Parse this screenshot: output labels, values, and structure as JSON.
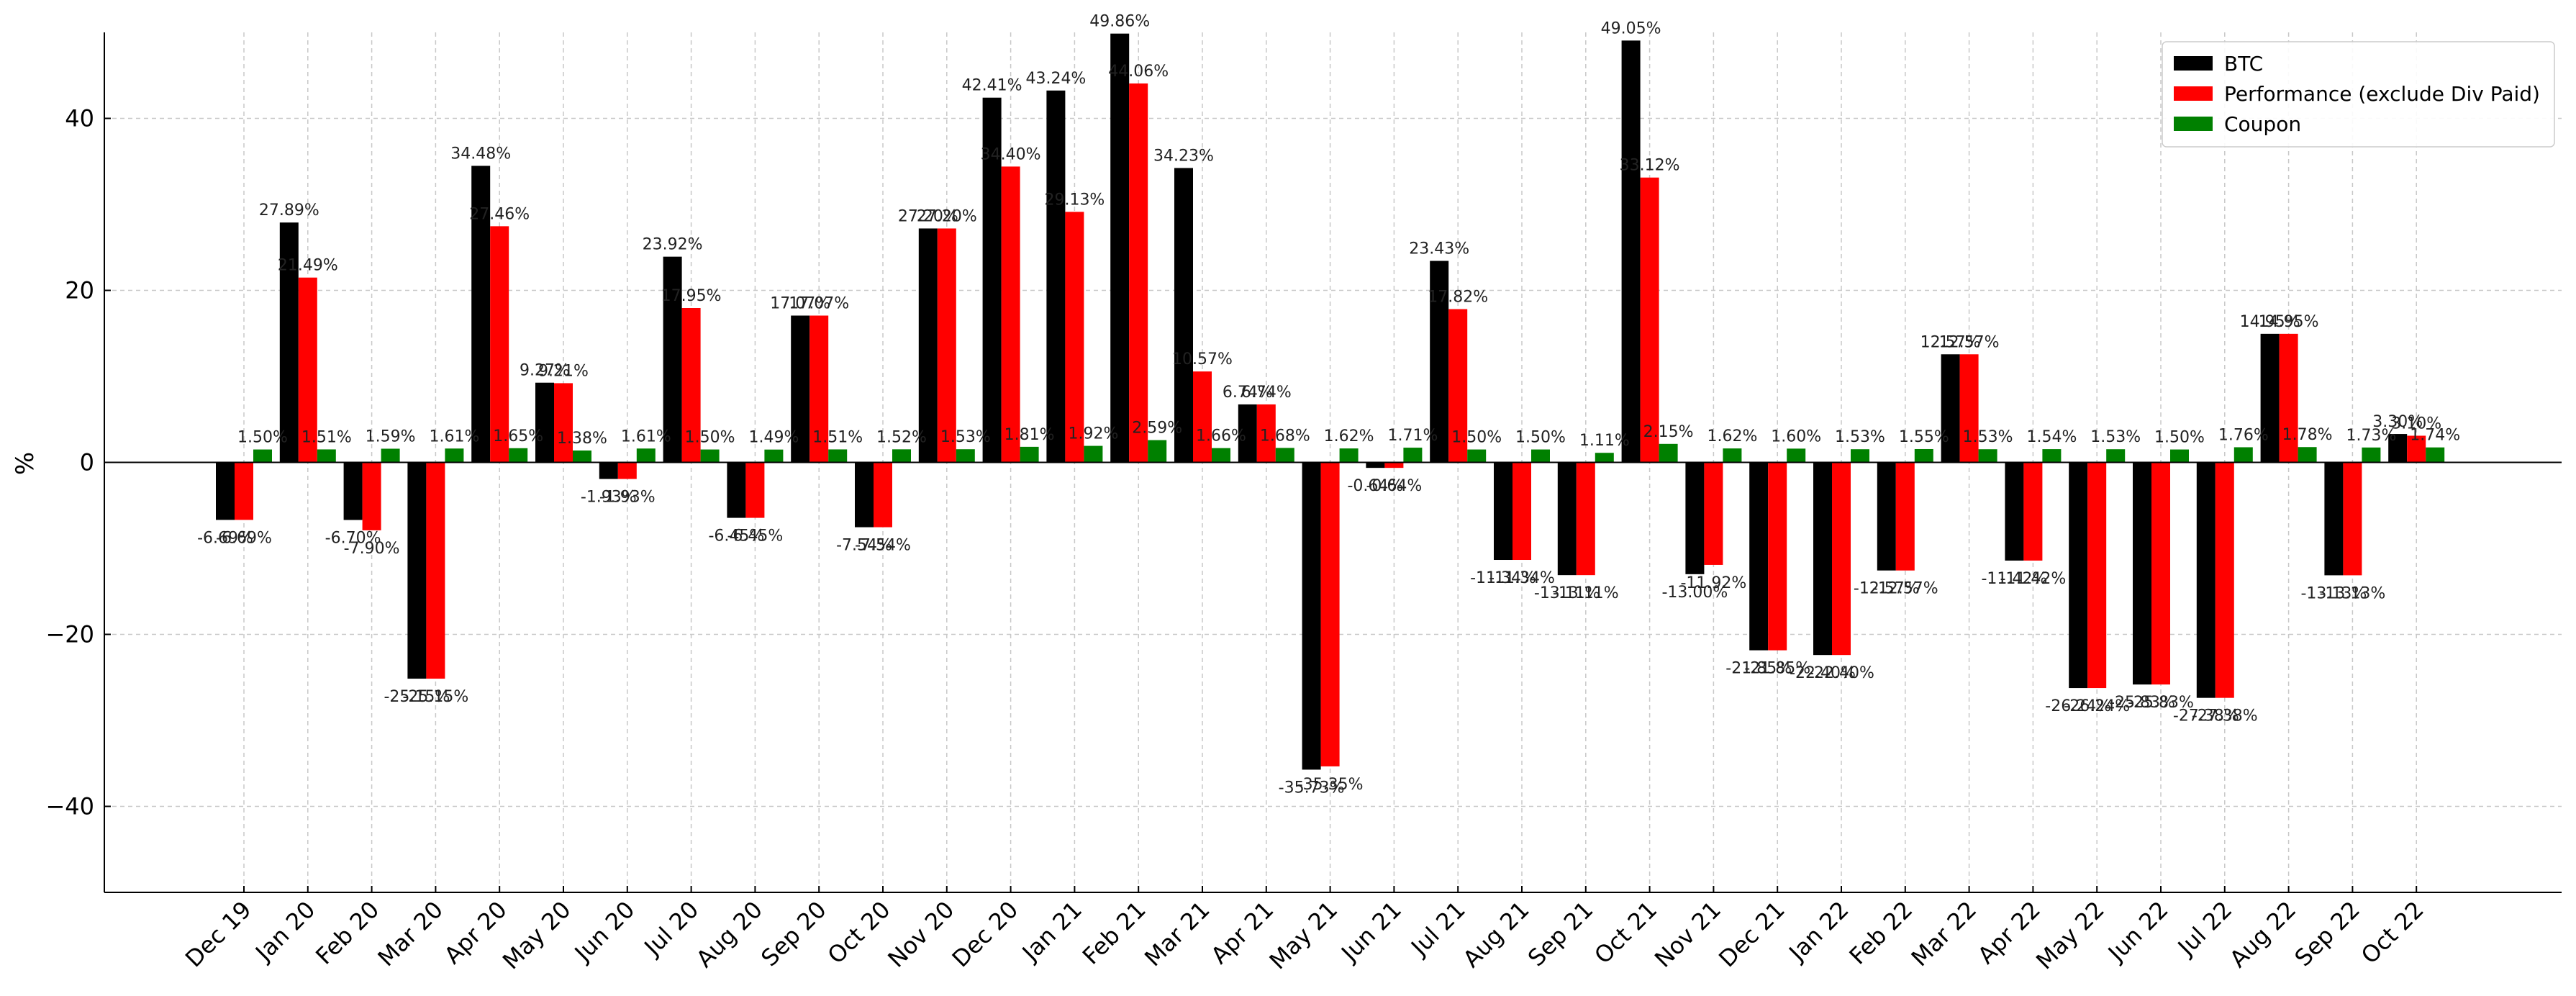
{
  "chart_data": {
    "type": "bar",
    "title": "",
    "xlabel": "",
    "ylabel": "%",
    "ylim": [
      -50,
      50
    ],
    "yticks": [
      -40,
      -20,
      0,
      20,
      40
    ],
    "grid": true,
    "legend_position": "top-right",
    "categories": [
      "Dec 19",
      "Jan 20",
      "Feb 20",
      "Mar 20",
      "Apr 20",
      "May 20",
      "Jun 20",
      "Jul 20",
      "Aug 20",
      "Sep 20",
      "Oct 20",
      "Nov 20",
      "Dec 20",
      "Jan 21",
      "Feb 21",
      "Mar 21",
      "Apr 21",
      "May 21",
      "Jun 21",
      "Jul 21",
      "Aug 21",
      "Sep 21",
      "Oct 21",
      "Nov 21",
      "Dec 21",
      "Jan 22",
      "Feb 22",
      "Mar 22",
      "Apr 22",
      "May 22",
      "Jun 22",
      "Jul 22",
      "Aug 22",
      "Sep 22",
      "Oct 22"
    ],
    "series": [
      {
        "name": "BTC",
        "color": "#000000",
        "values": [
          -6.69,
          27.89,
          -6.7,
          -25.15,
          34.48,
          9.27,
          -1.93,
          23.92,
          -6.45,
          17.07,
          -7.54,
          27.2,
          42.41,
          43.24,
          49.86,
          34.23,
          6.74,
          -35.73,
          -0.64,
          23.43,
          -11.34,
          -13.11,
          49.05,
          -13.0,
          -21.85,
          -22.4,
          -12.57,
          12.57,
          -11.42,
          -26.24,
          -25.83,
          -27.38,
          14.95,
          -13.13,
          3.3
        ],
        "labels": [
          "-6.69%",
          "27.89%",
          "-6.70%",
          "-25.15%",
          "34.48%",
          "9.27%",
          "-1.93%",
          "23.92%",
          "-6.45%",
          "17.07%",
          "-7.54%",
          "27.20%",
          "42.41%",
          "43.24%",
          "49.86%",
          "34.23%",
          "6.74%",
          "-35.73%",
          "-0.64%",
          "23.43%",
          "-11.34%",
          "-13.11%",
          "49.05%",
          "-13.00%",
          "-21.85%",
          "-22.40%",
          "-12.57%",
          "12.57%",
          "-11.42%",
          "-26.24%",
          "-25.83%",
          "-27.38%",
          "14.95%",
          "-13.13%",
          "3.30%"
        ]
      },
      {
        "name": "Performance (exclude Div Paid)",
        "color": "#ff0000",
        "values": [
          -6.69,
          21.49,
          -7.9,
          -25.15,
          27.46,
          9.21,
          -1.93,
          17.95,
          -6.45,
          17.07,
          -7.54,
          27.2,
          34.4,
          29.13,
          44.06,
          10.57,
          6.74,
          -35.35,
          -0.64,
          17.82,
          -11.34,
          -13.11,
          33.12,
          -11.92,
          -21.85,
          -22.4,
          -12.57,
          12.57,
          -11.42,
          -26.24,
          -25.83,
          -27.38,
          14.95,
          -13.13,
          3.1
        ],
        "labels": [
          "-6.69%",
          "21.49%",
          "-7.90%",
          "-25.15%",
          "27.46%",
          "9.21%",
          "-1.93%",
          "17.95%",
          "-6.45%",
          "17.07%",
          "-7.54%",
          "27.20%",
          "34.40%",
          "29.13%",
          "44.06%",
          "10.57%",
          "6.74%",
          "-35.35%",
          "-0.64%",
          "17.82%",
          "-11.34%",
          "-13.11%",
          "33.12%",
          "-11.92%",
          "-21.85%",
          "-22.40%",
          "-12.57%",
          "12.57%",
          "-11.42%",
          "-26.24%",
          "-25.83%",
          "-27.38%",
          "14.95%",
          "-13.13%",
          "3.10%"
        ]
      },
      {
        "name": "Coupon",
        "color": "#008000",
        "values": [
          1.5,
          1.51,
          1.59,
          1.61,
          1.65,
          1.38,
          1.61,
          1.5,
          1.49,
          1.51,
          1.52,
          1.53,
          1.81,
          1.92,
          2.59,
          1.66,
          1.68,
          1.62,
          1.71,
          1.5,
          1.5,
          1.11,
          2.15,
          1.62,
          1.6,
          1.53,
          1.55,
          1.53,
          1.54,
          1.53,
          1.5,
          1.76,
          1.78,
          1.73,
          1.74
        ],
        "labels": [
          "1.50%",
          "1.51%",
          "1.59%",
          "1.61%",
          "1.65%",
          "1.38%",
          "1.61%",
          "1.50%",
          "1.49%",
          "1.51%",
          "1.52%",
          "1.53%",
          "1.81%",
          "1.92%",
          "2.59%",
          "1.66%",
          "1.68%",
          "1.62%",
          "1.71%",
          "1.50%",
          "1.50%",
          "1.11%",
          "2.15%",
          "1.62%",
          "1.60%",
          "1.53%",
          "1.55%",
          "1.53%",
          "1.54%",
          "1.53%",
          "1.50%",
          "1.76%",
          "1.78%",
          "1.73%",
          "1.74%"
        ]
      }
    ]
  }
}
